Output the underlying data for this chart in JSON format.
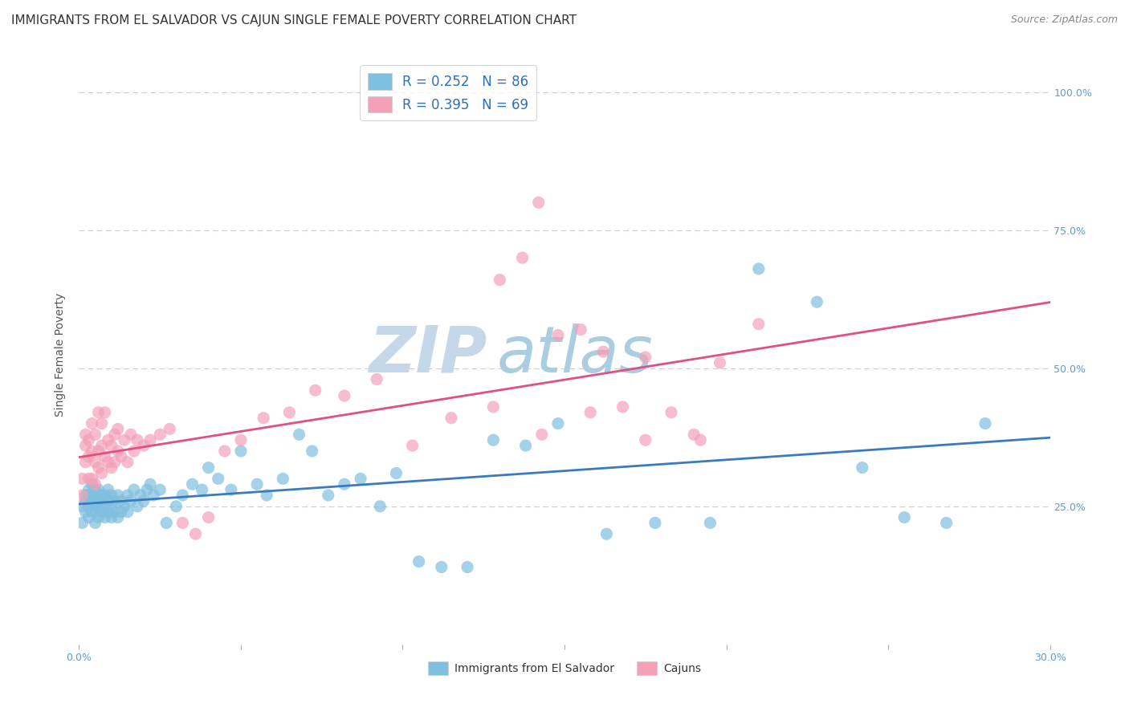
{
  "title": "IMMIGRANTS FROM EL SALVADOR VS CAJUN SINGLE FEMALE POVERTY CORRELATION CHART",
  "source": "Source: ZipAtlas.com",
  "ylabel": "Single Female Poverty",
  "yticks_labels": [
    "25.0%",
    "50.0%",
    "75.0%",
    "100.0%"
  ],
  "ytick_vals": [
    0.25,
    0.5,
    0.75,
    1.0
  ],
  "xlim": [
    0.0,
    0.3
  ],
  "ylim": [
    0.0,
    1.05
  ],
  "R_blue": 0.252,
  "N_blue": 86,
  "R_pink": 0.395,
  "N_pink": 69,
  "blue_color": "#7fbfdf",
  "pink_color": "#f4a0b8",
  "blue_line_color": "#3a7abf",
  "pink_line_color": "#e05080",
  "legend_label_blue": "Immigrants from El Salvador",
  "legend_label_pink": "Cajuns",
  "watermark_zip": "ZIP",
  "watermark_atlas": "atlas",
  "watermark_color_zip": "#b8cfe0",
  "watermark_color_atlas": "#9bbfd5",
  "grid_color": "#cccccc",
  "background_color": "#ffffff",
  "title_fontsize": 11,
  "axis_label_fontsize": 10,
  "tick_fontsize": 9,
  "blue_scatter_x": [
    0.001,
    0.001,
    0.002,
    0.002,
    0.002,
    0.003,
    0.003,
    0.003,
    0.003,
    0.004,
    0.004,
    0.004,
    0.004,
    0.005,
    0.005,
    0.005,
    0.005,
    0.005,
    0.006,
    0.006,
    0.006,
    0.006,
    0.007,
    0.007,
    0.007,
    0.008,
    0.008,
    0.008,
    0.009,
    0.009,
    0.009,
    0.01,
    0.01,
    0.01,
    0.011,
    0.011,
    0.012,
    0.012,
    0.013,
    0.013,
    0.014,
    0.015,
    0.015,
    0.016,
    0.017,
    0.018,
    0.019,
    0.02,
    0.021,
    0.022,
    0.023,
    0.025,
    0.027,
    0.03,
    0.032,
    0.035,
    0.038,
    0.04,
    0.043,
    0.047,
    0.05,
    0.055,
    0.058,
    0.063,
    0.068,
    0.072,
    0.077,
    0.082,
    0.087,
    0.093,
    0.098,
    0.105,
    0.112,
    0.12,
    0.128,
    0.138,
    0.148,
    0.163,
    0.178,
    0.195,
    0.21,
    0.228,
    0.242,
    0.255,
    0.268,
    0.28
  ],
  "blue_scatter_y": [
    0.22,
    0.25,
    0.26,
    0.24,
    0.27,
    0.23,
    0.25,
    0.27,
    0.28,
    0.24,
    0.26,
    0.27,
    0.29,
    0.22,
    0.24,
    0.25,
    0.26,
    0.28,
    0.23,
    0.25,
    0.26,
    0.28,
    0.24,
    0.26,
    0.27,
    0.23,
    0.25,
    0.27,
    0.24,
    0.26,
    0.28,
    0.23,
    0.25,
    0.27,
    0.24,
    0.26,
    0.23,
    0.27,
    0.24,
    0.26,
    0.25,
    0.24,
    0.27,
    0.26,
    0.28,
    0.25,
    0.27,
    0.26,
    0.28,
    0.29,
    0.27,
    0.28,
    0.22,
    0.25,
    0.27,
    0.29,
    0.28,
    0.32,
    0.3,
    0.28,
    0.35,
    0.29,
    0.27,
    0.3,
    0.38,
    0.35,
    0.27,
    0.29,
    0.3,
    0.25,
    0.31,
    0.15,
    0.14,
    0.14,
    0.37,
    0.36,
    0.4,
    0.2,
    0.22,
    0.22,
    0.68,
    0.62,
    0.32,
    0.23,
    0.22,
    0.4
  ],
  "pink_scatter_x": [
    0.001,
    0.001,
    0.002,
    0.002,
    0.002,
    0.003,
    0.003,
    0.003,
    0.004,
    0.004,
    0.004,
    0.005,
    0.005,
    0.005,
    0.006,
    0.006,
    0.006,
    0.007,
    0.007,
    0.007,
    0.008,
    0.008,
    0.009,
    0.009,
    0.01,
    0.01,
    0.011,
    0.011,
    0.012,
    0.012,
    0.013,
    0.014,
    0.015,
    0.016,
    0.017,
    0.018,
    0.02,
    0.022,
    0.025,
    0.028,
    0.032,
    0.036,
    0.04,
    0.045,
    0.05,
    0.057,
    0.065,
    0.073,
    0.082,
    0.092,
    0.103,
    0.115,
    0.128,
    0.143,
    0.158,
    0.175,
    0.192,
    0.21,
    0.13,
    0.137,
    0.142,
    0.148,
    0.155,
    0.162,
    0.168,
    0.175,
    0.183,
    0.19,
    0.198
  ],
  "pink_scatter_y": [
    0.27,
    0.3,
    0.33,
    0.36,
    0.38,
    0.3,
    0.34,
    0.37,
    0.3,
    0.35,
    0.4,
    0.29,
    0.33,
    0.38,
    0.32,
    0.35,
    0.42,
    0.31,
    0.36,
    0.4,
    0.34,
    0.42,
    0.33,
    0.37,
    0.32,
    0.36,
    0.33,
    0.38,
    0.35,
    0.39,
    0.34,
    0.37,
    0.33,
    0.38,
    0.35,
    0.37,
    0.36,
    0.37,
    0.38,
    0.39,
    0.22,
    0.2,
    0.23,
    0.35,
    0.37,
    0.41,
    0.42,
    0.46,
    0.45,
    0.48,
    0.36,
    0.41,
    0.43,
    0.38,
    0.42,
    0.52,
    0.37,
    0.58,
    0.66,
    0.7,
    0.8,
    0.56,
    0.57,
    0.53,
    0.43,
    0.37,
    0.42,
    0.38,
    0.51
  ]
}
